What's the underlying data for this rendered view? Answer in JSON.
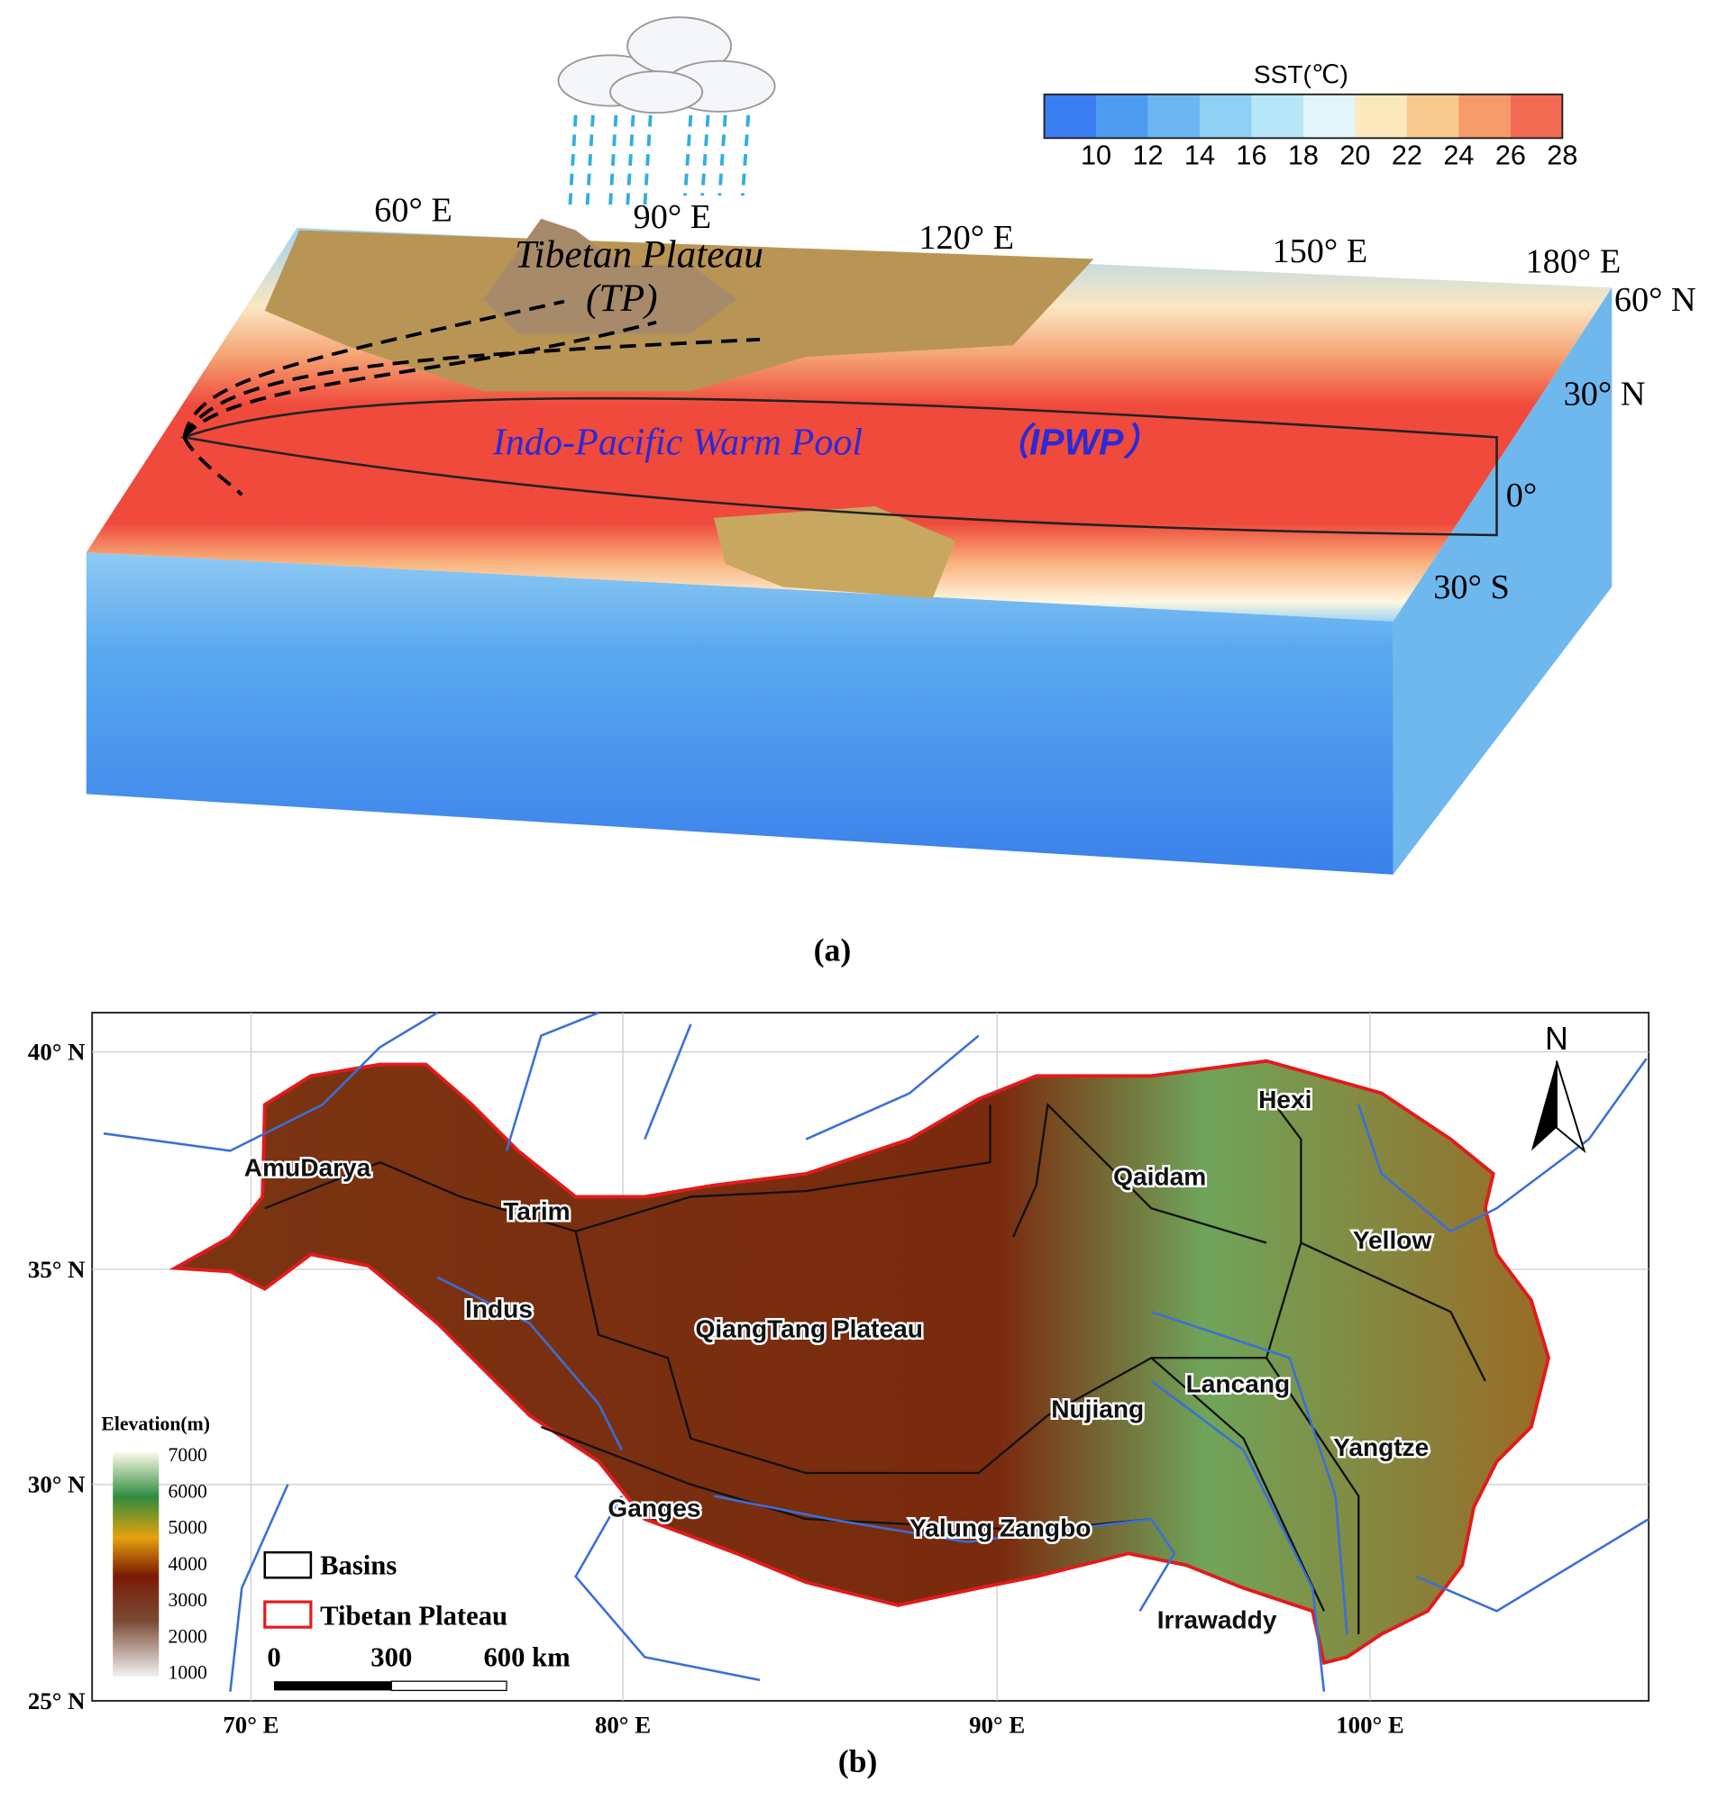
{
  "panel_a": {
    "colorbar": {
      "title": "SST(℃)",
      "ticks": [
        "10",
        "12",
        "14",
        "16",
        "18",
        "20",
        "22",
        "24",
        "26",
        "28"
      ]
    },
    "longitudes": [
      "60° E",
      "90° E",
      "120° E",
      "150° E",
      "180° E"
    ],
    "latitudes": [
      "60° N",
      "30° N",
      "0°",
      "30° S"
    ],
    "tp_label": [
      "Tibetan Plateau",
      "(TP)"
    ],
    "ipwp_label": [
      "Indo-Pacific Warm Pool",
      "（IPWP）"
    ],
    "caption": "(a)"
  },
  "panel_b": {
    "latitudes": [
      "40° N",
      "35° N",
      "30° N",
      "25° N"
    ],
    "longitudes": [
      "70° E",
      "80° E",
      "90° E",
      "100° E"
    ],
    "basins": [
      "AmuDarya",
      "Tarim",
      "Indus",
      "QiangTang Plateau",
      "Qaidam",
      "Hexi",
      "Yellow",
      "Lancang",
      "Nujiang",
      "Yangtze",
      "Ganges",
      "Yalung Zangbo",
      "Irrawaddy"
    ],
    "north": "N",
    "elevation": {
      "title": "Elevation(m)",
      "ticks": [
        "7000",
        "6000",
        "5000",
        "4000",
        "3000",
        "2000",
        "1000"
      ]
    },
    "legend": [
      "Basins",
      "Tibetan Plateau"
    ],
    "scale_bar": [
      "0",
      "300",
      "600 km"
    ],
    "caption": "(b)"
  }
}
